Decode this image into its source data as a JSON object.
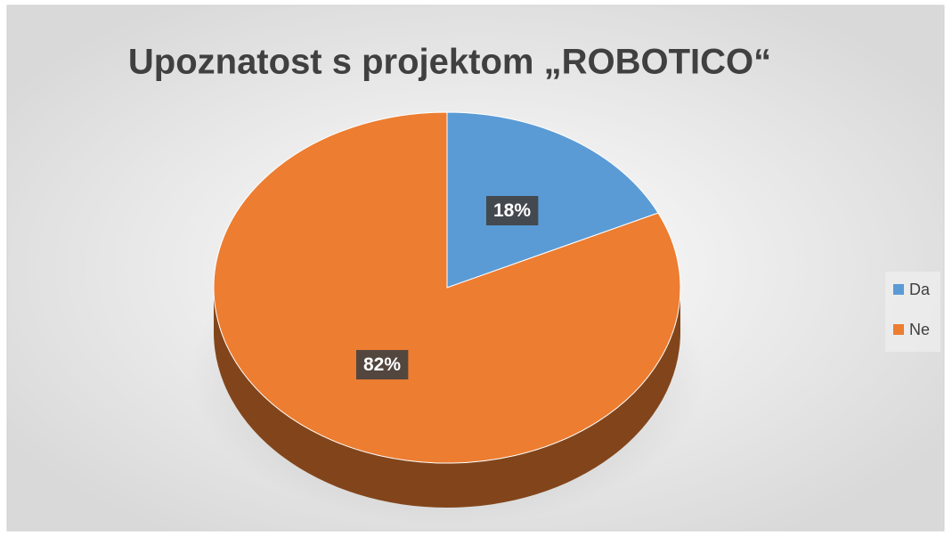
{
  "chart_data": {
    "type": "pie",
    "title": "Upoznatost s projektom „ROBOTICO“",
    "categories": [
      "Da",
      "Ne"
    ],
    "values": [
      18,
      82
    ],
    "value_labels": [
      "18%",
      "82%"
    ],
    "colors": [
      "#5b9bd5",
      "#ed7d31"
    ],
    "legend": "right",
    "three_d": true
  }
}
